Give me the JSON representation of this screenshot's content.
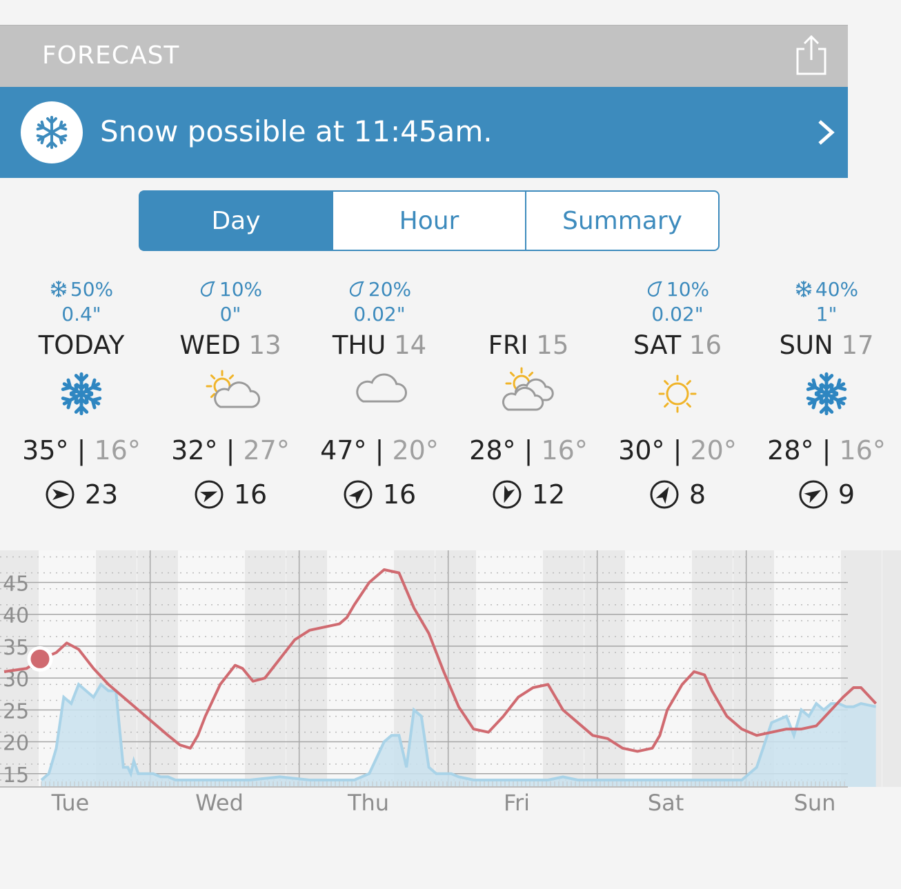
{
  "header": {
    "title": "FORECAST",
    "share_icon": "share-icon"
  },
  "alert": {
    "icon": "snowflake-icon",
    "text": "Snow possible at 11:45am.",
    "chevron": "chevron-right-icon"
  },
  "tabs": [
    {
      "label": "Day",
      "active": true
    },
    {
      "label": "Hour",
      "active": false
    },
    {
      "label": "Summary",
      "active": false
    }
  ],
  "days": [
    {
      "precip_type": "snow",
      "precip_pct": "50%",
      "amount": "0.4\"",
      "name": "TODAY",
      "num": "",
      "icon": "snow",
      "high": "35°",
      "low": "16°",
      "wind_speed": "23",
      "wind_dir_deg": 90
    },
    {
      "precip_type": "rain",
      "precip_pct": "10%",
      "amount": "0\"",
      "name": "WED",
      "num": "13",
      "icon": "partly-cloudy",
      "high": "32°",
      "low": "27°",
      "wind_speed": "16",
      "wind_dir_deg": 70
    },
    {
      "precip_type": "rain",
      "precip_pct": "20%",
      "amount": "0.02\"",
      "name": "THU",
      "num": "14",
      "icon": "cloudy",
      "high": "47°",
      "low": "20°",
      "wind_speed": "16",
      "wind_dir_deg": 45
    },
    {
      "precip_type": "none",
      "precip_pct": "",
      "amount": "",
      "name": "FRI",
      "num": "15",
      "icon": "mostly-cloudy",
      "high": "28°",
      "low": "16°",
      "wind_speed": "12",
      "wind_dir_deg": 200
    },
    {
      "precip_type": "rain",
      "precip_pct": "10%",
      "amount": "0.02\"",
      "name": "SAT",
      "num": "16",
      "icon": "sunny",
      "high": "30°",
      "low": "20°",
      "wind_speed": "8",
      "wind_dir_deg": 30
    },
    {
      "precip_type": "snow",
      "precip_pct": "40%",
      "amount": "1\"",
      "name": "SUN",
      "num": "17",
      "icon": "snow",
      "high": "28°",
      "low": "16°",
      "wind_speed": "9",
      "wind_dir_deg": 60
    }
  ],
  "colors": {
    "accent": "#3d8bbd",
    "temp_line": "#d06a70",
    "precip_fill": "#c9e2ef",
    "precip_line": "#a9d3e8"
  },
  "chart_data": {
    "type": "line",
    "y_ticks": [
      "45",
      "40",
      "35",
      "30",
      "25",
      "20",
      "15"
    ],
    "ylim": [
      14,
      50
    ],
    "xlim": [
      0,
      5.6
    ],
    "day_labels": [
      "Tue",
      "Wed",
      "Thu",
      "Fri",
      "Sat",
      "Sun"
    ],
    "current": {
      "x": 0.0,
      "y": 33
    },
    "series": [
      {
        "x": [
          -0.25,
          -0.1,
          0.0,
          0.1,
          0.17,
          0.25,
          0.35,
          0.45,
          0.55,
          0.65,
          0.75,
          0.85,
          0.93,
          1.0,
          1.05,
          1.1,
          1.2,
          1.3,
          1.35,
          1.42,
          1.5,
          1.6,
          1.7,
          1.8,
          1.9,
          2.0,
          2.05,
          2.1,
          2.2,
          2.3,
          2.4,
          2.5,
          2.6,
          2.7,
          2.8,
          2.9,
          3.0,
          3.1,
          3.2,
          3.3,
          3.4,
          3.5,
          3.6,
          3.7,
          3.8,
          3.9,
          4.0,
          4.1,
          4.15,
          4.2,
          4.3,
          4.38,
          4.45,
          4.5,
          4.6,
          4.7,
          4.8,
          4.9,
          5.0,
          5.1,
          5.2,
          5.3,
          5.38,
          5.45,
          5.5,
          5.6
        ],
        "y": [
          31,
          31.5,
          33,
          34,
          35.5,
          34.5,
          31.5,
          29,
          27,
          25,
          23,
          21,
          19.5,
          19,
          21,
          24,
          29,
          32,
          31.5,
          29.5,
          30,
          33,
          36,
          37.5,
          38,
          38.5,
          39.5,
          41.5,
          45,
          47,
          46.5,
          41,
          37,
          31,
          25.5,
          22,
          21.5,
          24,
          27,
          28.5,
          29,
          25,
          23,
          21,
          20.5,
          19,
          18.5,
          19,
          21,
          25,
          29,
          31,
          30.5,
          28,
          24,
          22,
          21,
          21.5,
          22,
          22,
          22.5,
          25,
          27,
          28.5,
          28.5,
          26
        ]
      },
      {
        "x": [
          0.0,
          0.05,
          0.1,
          0.15,
          0.2,
          0.25,
          0.3,
          0.35,
          0.4,
          0.45,
          0.5,
          0.55,
          0.58,
          0.6,
          0.62,
          0.65,
          0.7,
          0.75,
          0.8,
          0.85,
          0.9,
          1.0,
          1.2,
          1.4,
          1.6,
          1.8,
          2.0,
          2.1,
          2.2,
          2.3,
          2.35,
          2.4,
          2.45,
          2.5,
          2.55,
          2.6,
          2.65,
          2.7,
          2.75,
          2.8,
          2.9,
          3.0,
          3.1,
          3.2,
          3.3,
          3.4,
          3.5,
          3.6,
          3.7,
          3.8,
          3.9,
          4.0,
          4.2,
          4.4,
          4.6,
          4.7,
          4.8,
          4.9,
          5.0,
          5.05,
          5.1,
          5.15,
          5.2,
          5.25,
          5.3,
          5.35,
          5.4,
          5.45,
          5.5,
          5.6
        ],
        "y": [
          14,
          15,
          19,
          27,
          26,
          29,
          28,
          27,
          29,
          28,
          28,
          16,
          16,
          15,
          17,
          15,
          15,
          15,
          14.5,
          14.5,
          14,
          14,
          14,
          14,
          14.5,
          14,
          14,
          14,
          15,
          20,
          21,
          21,
          16,
          25,
          24,
          16,
          15,
          15,
          15,
          14.5,
          14,
          14,
          14,
          14,
          14,
          14,
          14.5,
          14,
          14,
          14,
          14,
          14,
          14,
          14,
          14,
          14,
          16,
          23,
          24,
          21,
          25,
          24,
          26,
          25,
          26,
          26,
          25.5,
          25.5,
          26,
          25.5
        ]
      }
    ]
  }
}
